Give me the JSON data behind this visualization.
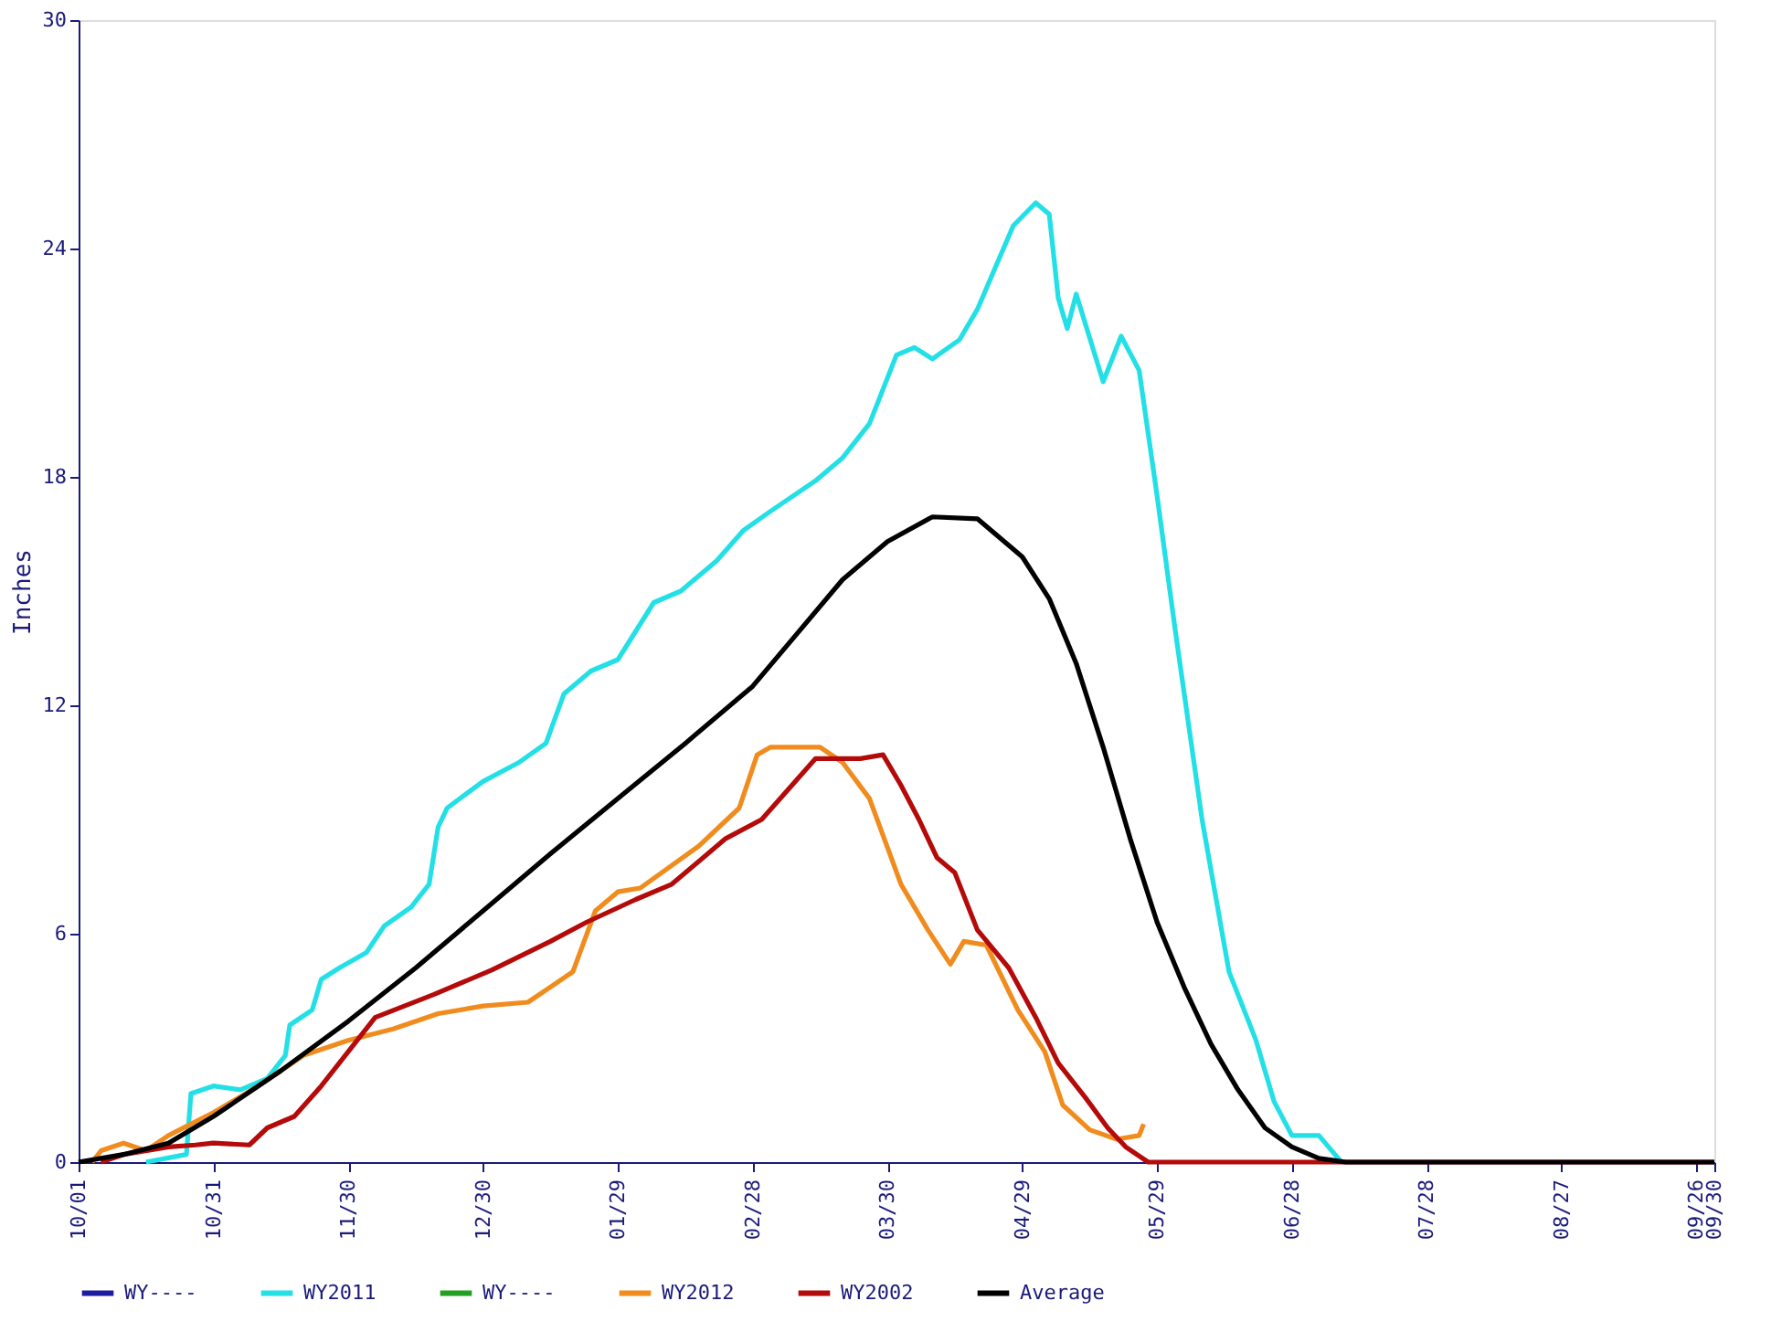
{
  "chart_data": {
    "type": "line",
    "ylabel": "Inches",
    "ylim": [
      0,
      30
    ],
    "yticks": [
      0,
      6,
      12,
      18,
      24,
      30
    ],
    "xlim": [
      "2010-10-01",
      "2011-09-30"
    ],
    "xticks": [
      {
        "value": "2010-10-01",
        "label": "10/01"
      },
      {
        "value": "2010-10-31",
        "label": "10/31"
      },
      {
        "value": "2010-11-30",
        "label": "11/30"
      },
      {
        "value": "2010-12-30",
        "label": "12/30"
      },
      {
        "value": "2011-01-29",
        "label": "01/29"
      },
      {
        "value": "2011-02-28",
        "label": "02/28"
      },
      {
        "value": "2011-03-30",
        "label": "03/30"
      },
      {
        "value": "2011-04-29",
        "label": "04/29"
      },
      {
        "value": "2011-05-29",
        "label": "05/29"
      },
      {
        "value": "2011-06-28",
        "label": "06/28"
      },
      {
        "value": "2011-07-28",
        "label": "07/28"
      },
      {
        "value": "2011-08-27",
        "label": "08/27"
      },
      {
        "value": "2011-09-26",
        "label": "09/26"
      },
      {
        "value": "2011-09-30",
        "label": "09/30"
      }
    ],
    "grid": false,
    "legend": "bottom",
    "marker": "none",
    "line_style": "solid",
    "series": [
      {
        "name": "WY----",
        "color": "#1c1ca0"
      },
      {
        "name": "WY2011",
        "color": "#22e0e6",
        "x": [
          "2010-10-16",
          "2010-10-25",
          "2010-10-26",
          "2010-10-31",
          "2010-11-06",
          "2010-11-12",
          "2010-11-16",
          "2010-11-17",
          "2010-11-22",
          "2010-11-24",
          "2010-11-28",
          "2010-12-04",
          "2010-12-08",
          "2010-12-14",
          "2010-12-18",
          "2010-12-20",
          "2010-12-22",
          "2010-12-30",
          "2011-01-07",
          "2011-01-13",
          "2011-01-17",
          "2011-01-23",
          "2011-01-29",
          "2011-02-06",
          "2011-02-12",
          "2011-02-20",
          "2011-02-26",
          "2011-03-04",
          "2011-03-14",
          "2011-03-20",
          "2011-03-26",
          "2011-03-30",
          "2011-04-01",
          "2011-04-05",
          "2011-04-09",
          "2011-04-15",
          "2011-04-19",
          "2011-04-23",
          "2011-04-27",
          "2011-05-02",
          "2011-05-05",
          "2011-05-07",
          "2011-05-09",
          "2011-05-11",
          "2011-05-17",
          "2011-05-21",
          "2011-05-25",
          "2011-05-29",
          "2011-06-02",
          "2011-06-08",
          "2011-06-14",
          "2011-06-20",
          "2011-06-24",
          "2011-06-28",
          "2011-07-04",
          "2011-07-09"
        ],
        "values": [
          0,
          0.2,
          1.8,
          2.0,
          1.9,
          2.2,
          2.8,
          3.6,
          4.0,
          4.8,
          5.1,
          5.5,
          6.2,
          6.7,
          7.3,
          8.8,
          9.3,
          10.0,
          10.5,
          11.0,
          12.3,
          12.9,
          13.2,
          14.7,
          15.0,
          15.8,
          16.6,
          17.1,
          17.9,
          18.5,
          19.4,
          20.6,
          21.2,
          21.4,
          21.1,
          21.6,
          22.4,
          23.5,
          24.6,
          25.2,
          24.9,
          22.7,
          21.9,
          22.8,
          20.5,
          21.7,
          20.8,
          17.5,
          14.0,
          9.0,
          5.0,
          3.2,
          1.6,
          0.7,
          0.7,
          0
        ]
      },
      {
        "name": "WY----",
        "color": "#22a022"
      },
      {
        "name": "WY2012",
        "color": "#f08c1e",
        "x": [
          "2010-10-04",
          "2010-10-06",
          "2010-10-11",
          "2010-10-16",
          "2010-10-21",
          "2010-10-31",
          "2010-11-10",
          "2010-11-20",
          "2010-11-30",
          "2010-12-10",
          "2010-12-20",
          "2010-12-30",
          "2011-01-09",
          "2011-01-14",
          "2011-01-19",
          "2011-01-24",
          "2011-01-29",
          "2011-02-03",
          "2011-02-16",
          "2011-02-25",
          "2011-03-01",
          "2011-03-04",
          "2011-03-15",
          "2011-03-20",
          "2011-03-26",
          "2011-04-02",
          "2011-04-08",
          "2011-04-13",
          "2011-04-16",
          "2011-04-21",
          "2011-04-28",
          "2011-05-04",
          "2011-05-08",
          "2011-05-14",
          "2011-05-20",
          "2011-05-25",
          "2011-05-26"
        ],
        "values": [
          0,
          0.3,
          0.5,
          0.3,
          0.7,
          1.3,
          2.0,
          2.8,
          3.2,
          3.5,
          3.9,
          4.1,
          4.2,
          4.6,
          5.0,
          6.6,
          7.1,
          7.2,
          8.3,
          9.3,
          10.7,
          10.9,
          10.9,
          10.5,
          9.55,
          7.3,
          6.1,
          5.2,
          5.8,
          5.7,
          4.0,
          2.9,
          1.5,
          0.85,
          0.6,
          0.7,
          1.0
        ]
      },
      {
        "name": "WY2002",
        "color": "#b40a0a",
        "x": [
          "2010-10-06",
          "2010-10-11",
          "2010-10-21",
          "2010-10-27",
          "2010-10-31",
          "2010-11-08",
          "2010-11-12",
          "2010-11-18",
          "2010-11-24",
          "2010-11-28",
          "2010-12-06",
          "2010-12-19",
          "2011-01-01",
          "2011-01-14",
          "2011-01-22",
          "2011-02-02",
          "2011-02-10",
          "2011-02-22",
          "2011-03-02",
          "2011-03-14",
          "2011-03-20",
          "2011-03-24",
          "2011-03-29",
          "2011-04-02",
          "2011-04-06",
          "2011-04-10",
          "2011-04-14",
          "2011-04-19",
          "2011-04-26",
          "2011-05-02",
          "2011-05-07",
          "2011-05-13",
          "2011-05-18",
          "2011-05-22",
          "2011-05-27",
          "2011-07-28",
          "2011-09-30"
        ],
        "values": [
          0,
          0.2,
          0.4,
          0.45,
          0.5,
          0.45,
          0.9,
          1.2,
          2.0,
          2.6,
          3.8,
          4.4,
          5.05,
          5.8,
          6.3,
          6.9,
          7.3,
          8.5,
          9.0,
          10.6,
          10.6,
          10.6,
          10.7,
          9.9,
          9.0,
          8.0,
          7.6,
          6.1,
          5.1,
          3.8,
          2.6,
          1.7,
          0.9,
          0.4,
          0,
          0,
          0
        ]
      },
      {
        "name": "Average",
        "color": "#000000",
        "x": [
          "2010-10-01",
          "2010-10-11",
          "2010-10-21",
          "2010-10-31",
          "2010-11-15",
          "2010-11-30",
          "2010-12-15",
          "2010-12-30",
          "2011-01-14",
          "2011-01-29",
          "2011-02-13",
          "2011-02-28",
          "2011-03-10",
          "2011-03-20",
          "2011-03-30",
          "2011-04-09",
          "2011-04-19",
          "2011-04-29",
          "2011-05-05",
          "2011-05-11",
          "2011-05-17",
          "2011-05-23",
          "2011-05-29",
          "2011-06-04",
          "2011-06-10",
          "2011-06-16",
          "2011-06-22",
          "2011-06-28",
          "2011-07-04",
          "2011-07-10",
          "2011-07-28",
          "2011-09-30"
        ],
        "values": [
          0,
          0.2,
          0.5,
          1.2,
          2.4,
          3.7,
          5.1,
          6.6,
          8.1,
          9.55,
          11.0,
          12.5,
          13.9,
          15.3,
          16.3,
          16.95,
          16.9,
          15.9,
          14.8,
          13.1,
          10.9,
          8.5,
          6.3,
          4.6,
          3.1,
          1.9,
          0.9,
          0.4,
          0.1,
          0,
          0,
          0
        ]
      }
    ]
  }
}
